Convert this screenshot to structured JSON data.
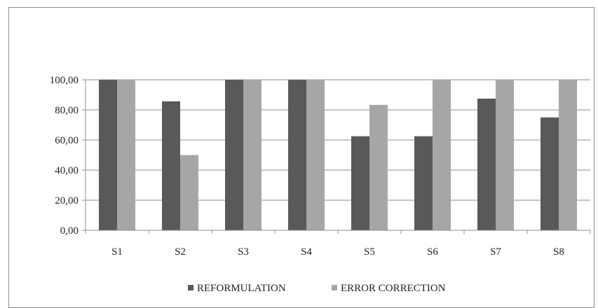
{
  "chart_data": {
    "type": "bar",
    "categories": [
      "S1",
      "S2",
      "S3",
      "S4",
      "S5",
      "S6",
      "S7",
      "S8"
    ],
    "series": [
      {
        "name": "REFORMULATION",
        "values": [
          100,
          85.71,
          100,
          100,
          62.5,
          62.5,
          87.5,
          75
        ],
        "color": "#595959"
      },
      {
        "name": "ERROR CORRECTION",
        "values": [
          100,
          50,
          100,
          100,
          83.33,
          100,
          100,
          100
        ],
        "color": "#a6a6a6"
      }
    ],
    "yticks": [
      "0,00",
      "20,00",
      "40,00",
      "60,00",
      "80,00",
      "100,00"
    ],
    "ylim": [
      0,
      100
    ],
    "grid": true,
    "legend_position": "bottom"
  }
}
